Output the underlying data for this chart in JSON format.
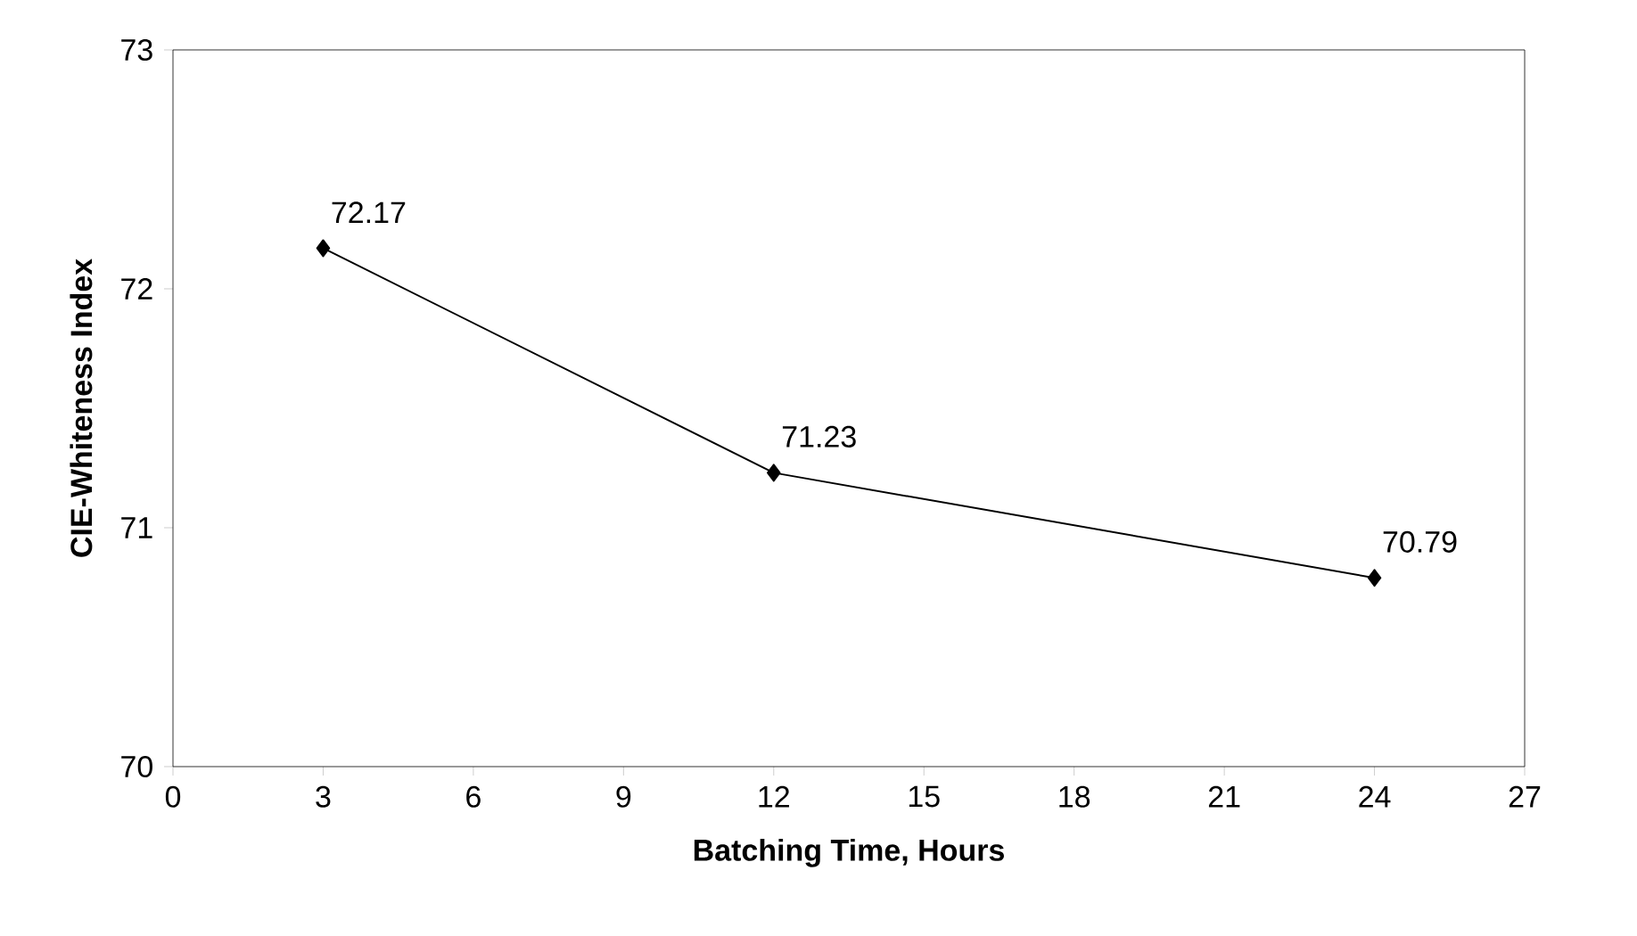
{
  "chart_data": {
    "type": "line",
    "xlabel": "Batching Time, Hours",
    "ylabel": "CIE-Whiteness Index",
    "x": [
      3,
      12,
      24
    ],
    "series": [
      {
        "color": "#000000",
        "values": [
          72.17,
          71.23,
          70.79
        ]
      }
    ],
    "xlim": [
      0,
      27
    ],
    "xticks": [
      0,
      3,
      6,
      9,
      12,
      15,
      18,
      21,
      24,
      27
    ],
    "ylim": [
      70,
      73
    ],
    "yticks": [
      70,
      71,
      72,
      73
    ],
    "marker": "diamond",
    "line_style": "solid",
    "data_labels": true
  }
}
